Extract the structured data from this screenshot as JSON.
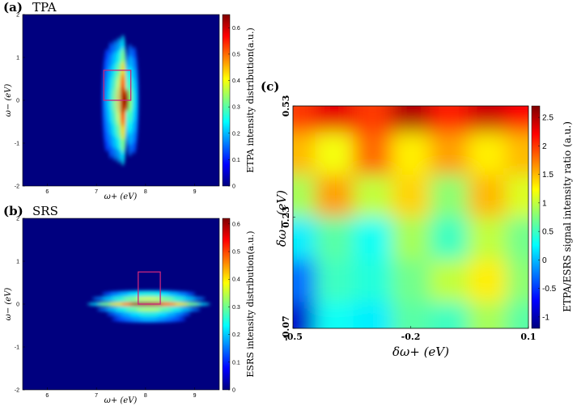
{
  "colors": {
    "jet": [
      "#00007f",
      "#0000ff",
      "#007fff",
      "#00ffff",
      "#7fff7f",
      "#ffff00",
      "#ff7f00",
      "#ff0000",
      "#7f0000"
    ],
    "box": "#c8267d"
  },
  "chart_data": [
    {
      "type": "heatmap",
      "panel": "(a)",
      "title": "TPA",
      "xlabel": "ω+ (eV)",
      "ylabel": "ω− (eV)",
      "xlim": [
        5.5,
        9.5
      ],
      "ylim": [
        -2,
        2
      ],
      "xticks": [
        "6",
        "7",
        "8",
        "9"
      ],
      "yticks": [
        "2",
        "1",
        "0",
        "-1",
        "-2"
      ],
      "colorbar": {
        "label": "ETPA intensity distribution(a.u.)",
        "range": [
          0,
          0.65
        ],
        "ticks": [
          "0.6",
          "0.5",
          "0.4",
          "0.3",
          "0.2",
          "0.1",
          "0"
        ]
      },
      "peak": {
        "x": 7.62,
        "y": 0.0,
        "value": 0.65
      },
      "highlight_box": {
        "x": [
          7.15,
          7.7
        ],
        "y": [
          0,
          0.7
        ]
      }
    },
    {
      "type": "heatmap",
      "panel": "(b)",
      "title": "SRS",
      "xlabel": "ω+ (eV)",
      "ylabel": "ω− (eV)",
      "xlim": [
        5.5,
        9.5
      ],
      "ylim": [
        -2,
        2
      ],
      "xticks": [
        "6",
        "7",
        "8",
        "9"
      ],
      "yticks": [
        "2",
        "1",
        "0",
        "-1",
        "-2"
      ],
      "colorbar": {
        "label": "ESRS intensity distribution(a.u.)",
        "range": [
          0,
          0.62
        ],
        "ticks": [
          "0.6",
          "0.5",
          "0.4",
          "0.3",
          "0.2",
          "0.1",
          "0"
        ]
      },
      "peak": {
        "x": 7.9,
        "y": 0.0,
        "value": 0.62
      },
      "highlight_box": {
        "x": [
          7.85,
          8.3
        ],
        "y": [
          0,
          0.75
        ]
      }
    },
    {
      "type": "heatmap",
      "panel": "(c)",
      "title": "",
      "xlabel": "δω+ (eV)",
      "ylabel": "δω− (eV)",
      "xlim": [
        -0.5,
        0.1
      ],
      "ylim": [
        -0.07,
        0.53
      ],
      "xticks": [
        "-0.5",
        "-0.2",
        "0.1"
      ],
      "yticks": [
        "0.53",
        "0.23",
        "-0.07"
      ],
      "colorbar": {
        "label": "ETPA/ESRS signal intensity ratio (a.u.)",
        "range": [
          -1.2,
          2.7
        ],
        "ticks": [
          "2.5",
          "2",
          "1.5",
          "1",
          "0.5",
          "0",
          "-0.5",
          "-1"
        ]
      },
      "ratio_grid": {
        "rows_top_to_bottom": [
          [
            2.0,
            2.3,
            2.0,
            2.5,
            2.1,
            2.4,
            2.2
          ],
          [
            1.5,
            1.2,
            1.8,
            1.3,
            1.6,
            1.3,
            1.5
          ],
          [
            0.9,
            1.6,
            1.0,
            1.4,
            0.8,
            1.5,
            1.1
          ],
          [
            0.2,
            0.6,
            0.3,
            0.9,
            0.5,
            1.0,
            0.7
          ],
          [
            -0.3,
            0.5,
            0.4,
            0.7,
            1.0,
            1.3,
            0.8
          ],
          [
            -0.9,
            0.3,
            0.2,
            0.6,
            0.5,
            0.9,
            0.6
          ]
        ]
      }
    }
  ]
}
